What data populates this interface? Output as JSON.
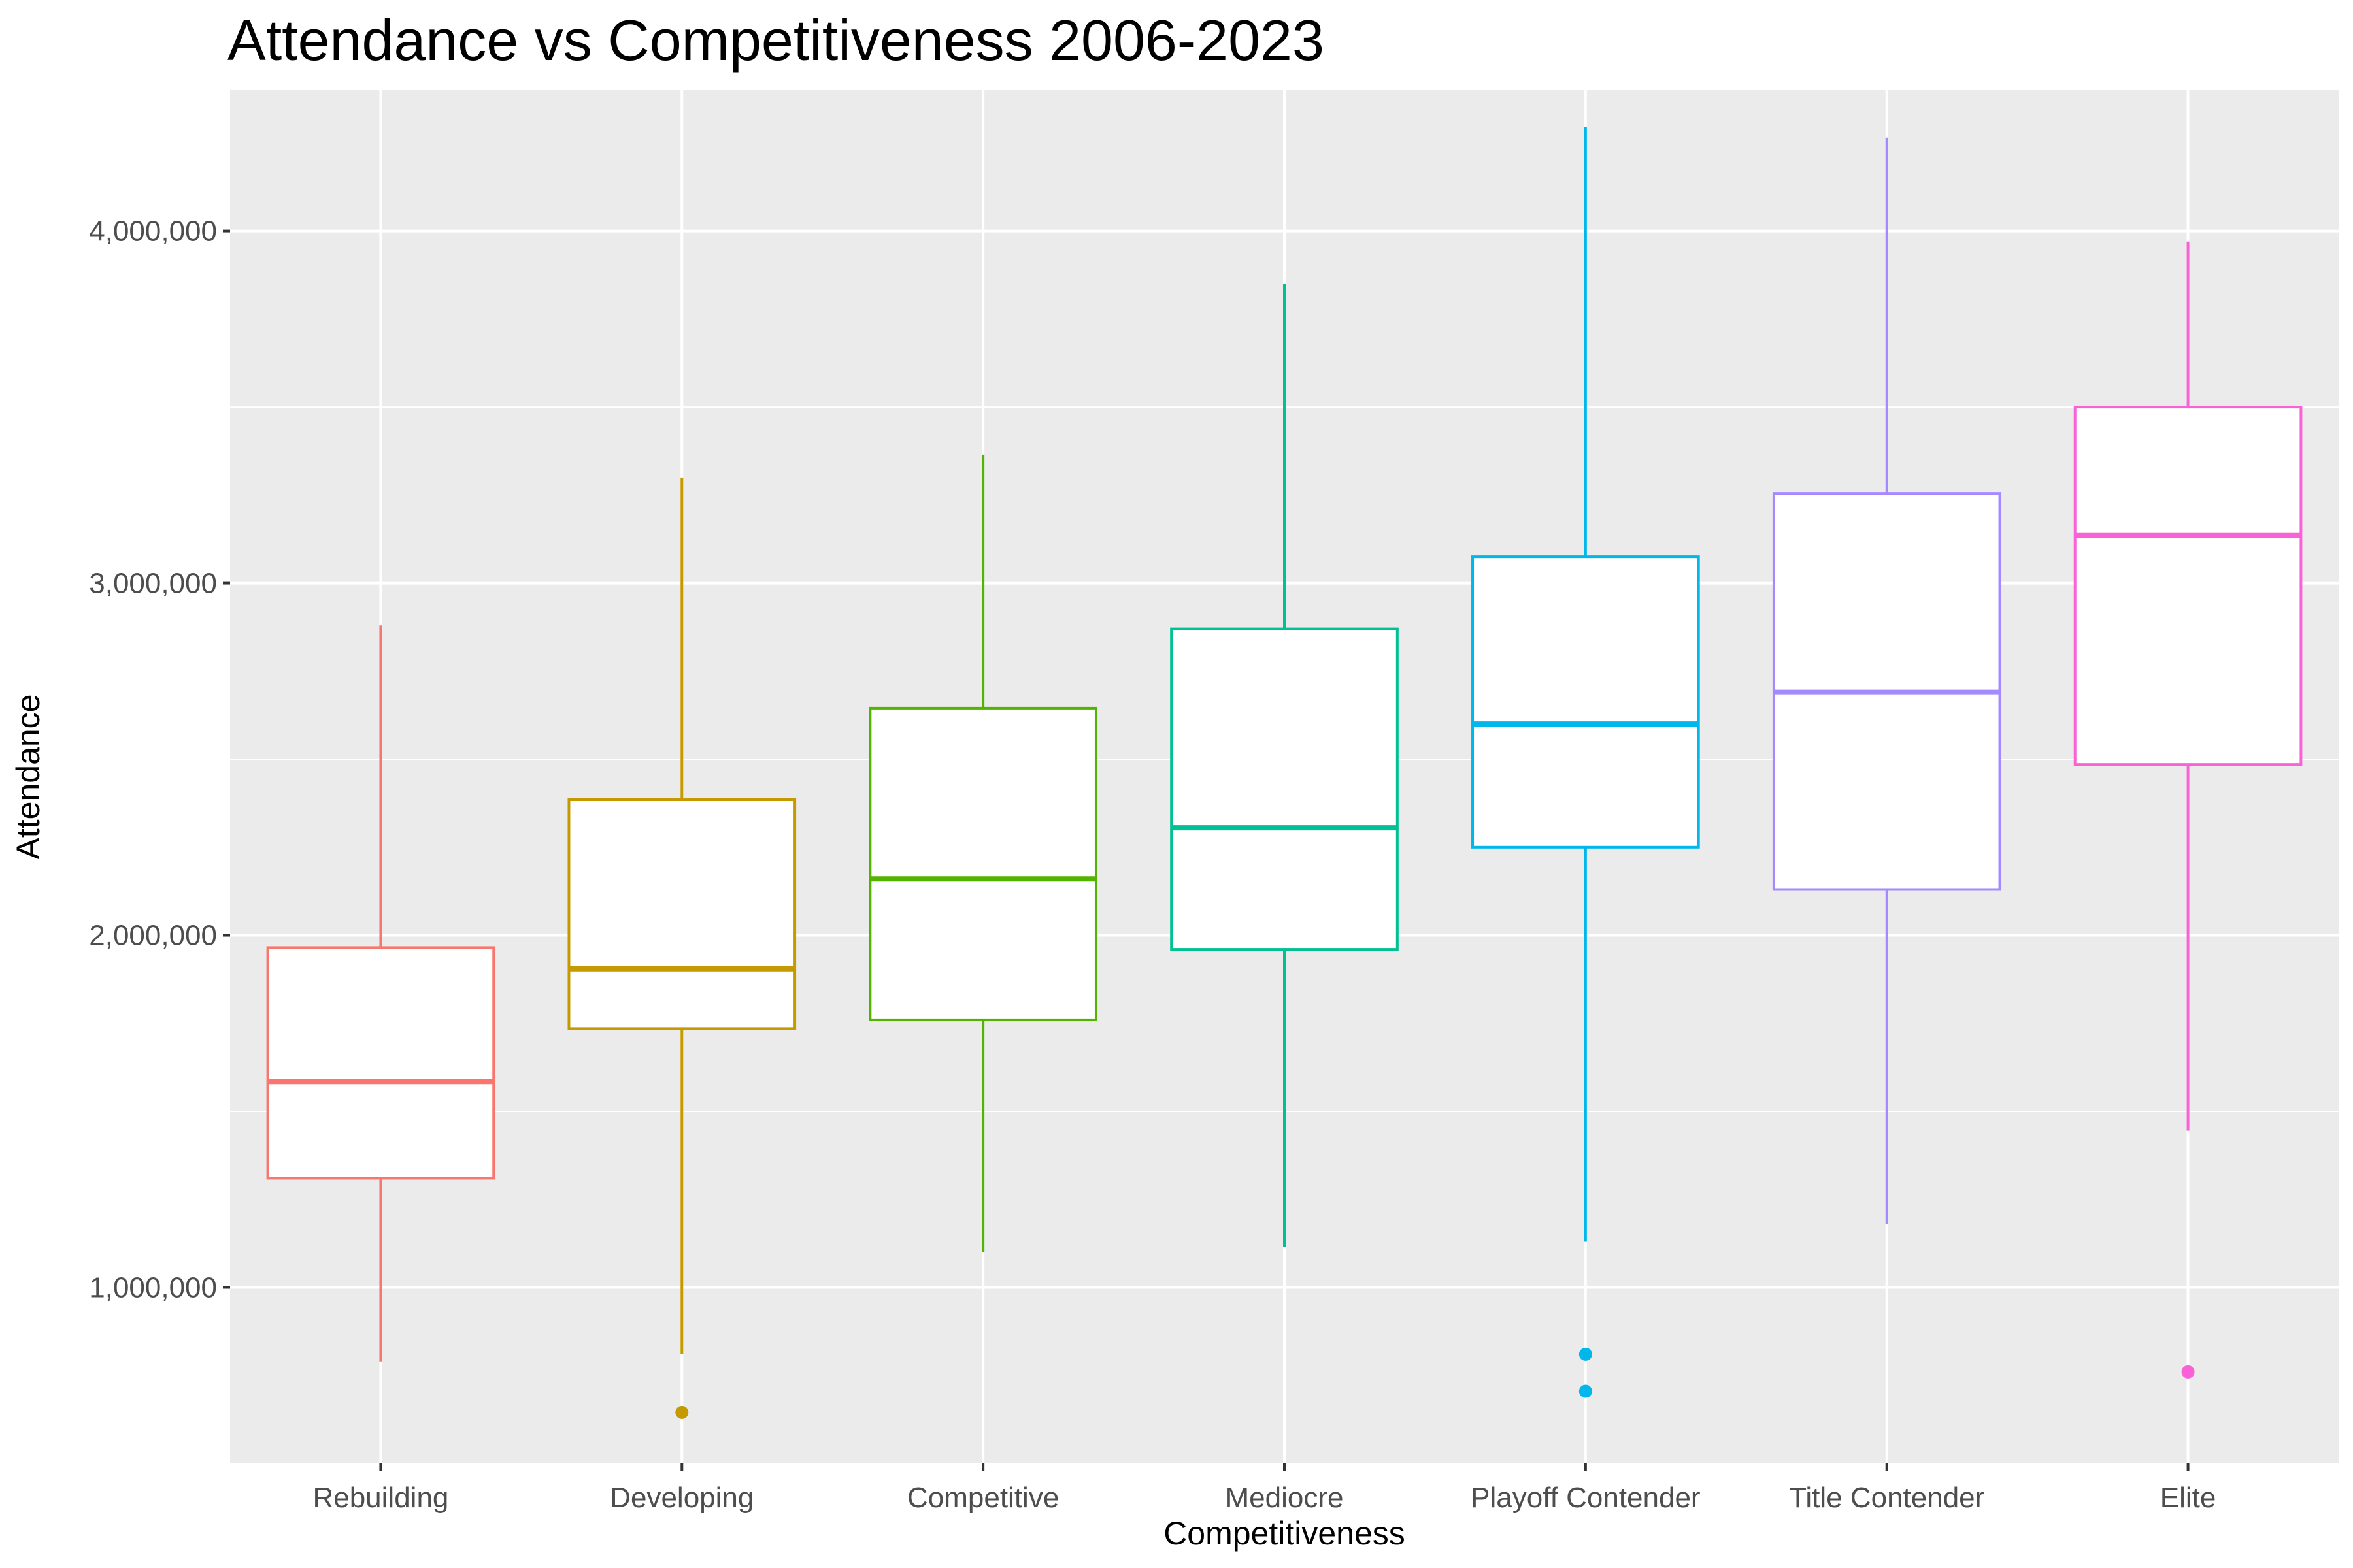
{
  "chart_data": {
    "type": "boxplot",
    "title": "Attendance vs Competitiveness 2006-2023",
    "xlabel": "Competitiveness",
    "ylabel": "Attendance",
    "ylim": [
      500000,
      4400000
    ],
    "yticks": [
      1000000,
      2000000,
      3000000,
      4000000
    ],
    "ytick_labels": [
      "1,000,000",
      "2,000,000",
      "3,000,000",
      "4,000,000"
    ],
    "grid": true,
    "legend": "none",
    "categories": [
      "Rebuilding",
      "Developing",
      "Competitive",
      "Mediocre",
      "Playoff Contender",
      "Title Contender",
      "Elite"
    ],
    "boxes": [
      {
        "category": "Rebuilding",
        "color": "#F8766D",
        "whisker_low": 790000,
        "q1": 1310000,
        "median": 1585000,
        "q3": 1965000,
        "whisker_high": 2880000,
        "outliers": []
      },
      {
        "category": "Developing",
        "color": "#C49A00",
        "whisker_low": 810000,
        "q1": 1735000,
        "median": 1905000,
        "q3": 2385000,
        "whisker_high": 3300000,
        "outliers": [
          645000
        ]
      },
      {
        "category": "Competitive",
        "color": "#53B400",
        "whisker_low": 1100000,
        "q1": 1760000,
        "median": 2160000,
        "q3": 2645000,
        "whisker_high": 3365000,
        "outliers": []
      },
      {
        "category": "Mediocre",
        "color": "#00C094",
        "whisker_low": 1115000,
        "q1": 1960000,
        "median": 2305000,
        "q3": 2870000,
        "whisker_high": 3850000,
        "outliers": []
      },
      {
        "category": "Playoff Contender",
        "color": "#00B6EB",
        "whisker_low": 1130000,
        "q1": 2250000,
        "median": 2600000,
        "q3": 3075000,
        "whisker_high": 4295000,
        "outliers": [
          810000,
          705000
        ]
      },
      {
        "category": "Title Contender",
        "color": "#A58AFF",
        "whisker_low": 1180000,
        "q1": 2130000,
        "median": 2690000,
        "q3": 3255000,
        "whisker_high": 4265000,
        "outliers": []
      },
      {
        "category": "Elite",
        "color": "#FB61D7",
        "whisker_low": 1445000,
        "q1": 2485000,
        "median": 3135000,
        "q3": 3500000,
        "whisker_high": 3970000,
        "outliers": [
          760000
        ]
      }
    ]
  }
}
